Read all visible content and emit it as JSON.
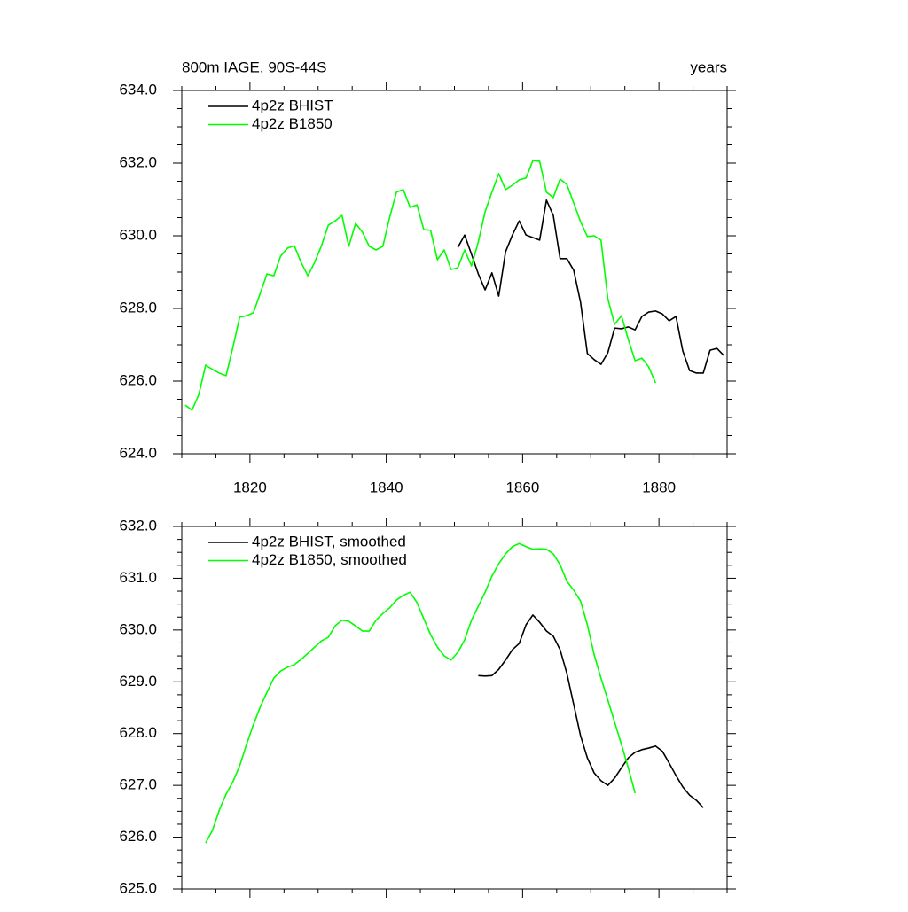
{
  "chart_data": [
    {
      "type": "line",
      "title": "800m IAGE, 90S-44S",
      "right_title": "years",
      "xlim": [
        1810,
        1890
      ],
      "xticks": [
        1820,
        1840,
        1860,
        1880
      ],
      "ylim": [
        624,
        634
      ],
      "yticks": [
        {
          "value": 624,
          "label": "624.0"
        },
        {
          "value": 626,
          "label": "626.0"
        },
        {
          "value": 628,
          "label": "628.0"
        },
        {
          "value": 630,
          "label": "630.0"
        },
        {
          "value": 632,
          "label": "632.0"
        },
        {
          "value": 634,
          "label": "634.0"
        }
      ],
      "series": [
        {
          "name": "4p2z BHIST",
          "color": "#000000",
          "x": [
            1850.5,
            1851.5,
            1852.5,
            1853.5,
            1854.5,
            1855.5,
            1856.5,
            1857.5,
            1858.5,
            1859.5,
            1860.5,
            1861.5,
            1862.5,
            1863.5,
            1864.5,
            1865.5,
            1866.5,
            1867.5,
            1868.5,
            1869.5,
            1870.5,
            1871.5,
            1872.5,
            1873.5,
            1874.5,
            1875.5,
            1876.5,
            1877.5,
            1878.5,
            1879.5,
            1880.5,
            1881.5,
            1882.5,
            1883.5,
            1884.5,
            1885.5,
            1886.5,
            1887.5,
            1888.5,
            1889.5
          ],
          "values": [
            629.68,
            630.02,
            629.49,
            628.95,
            628.51,
            628.98,
            628.34,
            629.56,
            630.02,
            630.41,
            630.02,
            629.95,
            629.88,
            630.98,
            630.56,
            629.37,
            629.37,
            629.05,
            628.17,
            626.76,
            626.59,
            626.46,
            626.78,
            627.46,
            627.44,
            627.49,
            627.41,
            627.78,
            627.9,
            627.93,
            627.85,
            627.66,
            627.78,
            626.83,
            626.29,
            626.22,
            626.22,
            626.85,
            626.9,
            626.71
          ]
        },
        {
          "name": "4p2z B1850",
          "color": "#00ff00",
          "x": [
            1810.5,
            1811.5,
            1812.5,
            1813.5,
            1814.5,
            1815.5,
            1816.5,
            1817.5,
            1818.5,
            1819.5,
            1820.5,
            1821.5,
            1822.5,
            1823.5,
            1824.5,
            1825.5,
            1826.5,
            1827.5,
            1828.5,
            1829.5,
            1830.5,
            1831.5,
            1832.5,
            1833.5,
            1834.5,
            1835.5,
            1836.5,
            1837.5,
            1838.5,
            1839.5,
            1840.5,
            1841.5,
            1842.5,
            1843.5,
            1844.5,
            1845.5,
            1846.5,
            1847.5,
            1848.5,
            1849.5,
            1850.5,
            1851.5,
            1852.5,
            1853.5,
            1854.5,
            1855.5,
            1856.5,
            1857.5,
            1858.5,
            1859.5,
            1860.5,
            1861.5,
            1862.5,
            1863.5,
            1864.5,
            1865.5,
            1866.5,
            1867.5,
            1868.5,
            1869.5,
            1870.5,
            1871.5,
            1872.5,
            1873.5,
            1874.5,
            1875.5,
            1876.5,
            1877.5,
            1878.5,
            1879.5
          ],
          "values": [
            625.34,
            625.2,
            625.63,
            626.44,
            626.32,
            626.22,
            626.15,
            626.93,
            627.76,
            627.8,
            627.88,
            628.41,
            628.95,
            628.9,
            629.44,
            629.66,
            629.73,
            629.27,
            628.9,
            629.27,
            629.73,
            630.29,
            630.41,
            630.56,
            629.71,
            630.34,
            630.1,
            629.71,
            629.61,
            629.71,
            630.51,
            631.2,
            631.27,
            630.78,
            630.85,
            630.17,
            630.15,
            629.34,
            629.61,
            629.07,
            629.12,
            629.61,
            629.17,
            629.83,
            630.66,
            631.2,
            631.71,
            631.27,
            631.39,
            631.54,
            631.59,
            632.07,
            632.05,
            631.2,
            631.05,
            631.56,
            631.41,
            630.9,
            630.39,
            629.98,
            630.0,
            629.88,
            628.27,
            627.56,
            627.8,
            627.15,
            626.56,
            626.63,
            626.39,
            625.95
          ]
        }
      ]
    },
    {
      "type": "line",
      "xlim": [
        1810,
        1890
      ],
      "xticks": [
        1820,
        1840,
        1860,
        1880
      ],
      "ylim": [
        625,
        632
      ],
      "yticks": [
        {
          "value": 625,
          "label": "625.0"
        },
        {
          "value": 626,
          "label": "626.0"
        },
        {
          "value": 627,
          "label": "627.0"
        },
        {
          "value": 628,
          "label": "628.0"
        },
        {
          "value": 629,
          "label": "629.0"
        },
        {
          "value": 630,
          "label": "630.0"
        },
        {
          "value": 631,
          "label": "631.0"
        },
        {
          "value": 632,
          "label": "632.0"
        }
      ],
      "series": [
        {
          "name": "4p2z BHIST, smoothed",
          "color": "#000000",
          "x": [
            1853.5,
            1854.5,
            1855.5,
            1856.5,
            1857.5,
            1858.5,
            1859.5,
            1860.5,
            1861.5,
            1862.5,
            1863.5,
            1864.5,
            1865.5,
            1866.5,
            1867.5,
            1868.5,
            1869.5,
            1870.5,
            1871.5,
            1872.5,
            1873.5,
            1874.5,
            1875.5,
            1876.5,
            1877.5,
            1878.5,
            1879.5,
            1880.5,
            1881.5,
            1882.5,
            1883.5,
            1884.5,
            1885.5,
            1886.5
          ],
          "values": [
            629.12,
            629.11,
            629.12,
            629.24,
            629.42,
            629.62,
            629.74,
            630.1,
            630.29,
            630.15,
            629.98,
            629.88,
            629.62,
            629.16,
            628.56,
            627.96,
            627.53,
            627.24,
            627.09,
            627.0,
            627.14,
            627.34,
            627.53,
            627.64,
            627.69,
            627.72,
            627.76,
            627.66,
            627.43,
            627.19,
            626.97,
            626.81,
            626.71,
            626.57
          ]
        },
        {
          "name": "4p2z B1850, smoothed",
          "color": "#00ff00",
          "x": [
            1813.5,
            1814.5,
            1815.5,
            1816.5,
            1817.5,
            1818.5,
            1819.5,
            1820.5,
            1821.5,
            1822.5,
            1823.5,
            1824.5,
            1825.5,
            1826.5,
            1827.5,
            1828.5,
            1829.5,
            1830.5,
            1831.5,
            1832.5,
            1833.5,
            1834.5,
            1835.5,
            1836.5,
            1837.5,
            1838.5,
            1839.5,
            1840.5,
            1841.5,
            1842.5,
            1843.5,
            1844.5,
            1845.5,
            1846.5,
            1847.5,
            1848.5,
            1849.5,
            1850.5,
            1851.5,
            1852.5,
            1853.5,
            1854.5,
            1855.5,
            1856.5,
            1857.5,
            1858.5,
            1859.5,
            1860.5,
            1861.5,
            1862.5,
            1863.5,
            1864.5,
            1865.5,
            1866.5,
            1867.5,
            1868.5,
            1869.5,
            1870.5,
            1871.5,
            1872.5,
            1873.5,
            1874.5,
            1875.5,
            1876.5
          ],
          "values": [
            625.89,
            626.13,
            626.52,
            626.83,
            627.07,
            627.38,
            627.79,
            628.17,
            628.51,
            628.8,
            629.07,
            629.21,
            629.28,
            629.33,
            629.43,
            629.55,
            629.67,
            629.79,
            629.86,
            630.08,
            630.19,
            630.17,
            630.08,
            629.98,
            629.98,
            630.19,
            630.32,
            630.43,
            630.58,
            630.67,
            630.73,
            630.53,
            630.22,
            629.91,
            629.67,
            629.5,
            629.42,
            629.57,
            629.81,
            630.19,
            630.46,
            630.73,
            631.04,
            631.28,
            631.47,
            631.61,
            631.67,
            631.61,
            631.56,
            631.57,
            631.56,
            631.47,
            631.26,
            630.94,
            630.77,
            630.56,
            630.1,
            629.52,
            629.07,
            628.65,
            628.22,
            627.79,
            627.34,
            626.85
          ]
        }
      ]
    }
  ]
}
